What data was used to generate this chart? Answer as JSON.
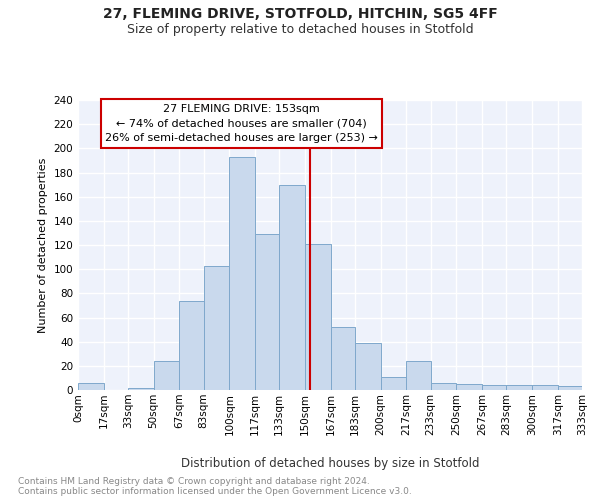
{
  "title": "27, FLEMING DRIVE, STOTFOLD, HITCHIN, SG5 4FF",
  "subtitle": "Size of property relative to detached houses in Stotfold",
  "xlabel": "Distribution of detached houses by size in Stotfold",
  "ylabel": "Number of detached properties",
  "bin_edges": [
    0,
    17,
    33,
    50,
    67,
    83,
    100,
    117,
    133,
    150,
    167,
    183,
    200,
    217,
    233,
    250,
    267,
    283,
    300,
    317,
    333
  ],
  "bin_labels": [
    "0sqm",
    "17sqm",
    "33sqm",
    "50sqm",
    "67sqm",
    "83sqm",
    "100sqm",
    "117sqm",
    "133sqm",
    "150sqm",
    "167sqm",
    "183sqm",
    "200sqm",
    "217sqm",
    "233sqm",
    "250sqm",
    "267sqm",
    "283sqm",
    "300sqm",
    "317sqm",
    "333sqm"
  ],
  "counts": [
    6,
    0,
    2,
    24,
    74,
    103,
    193,
    129,
    170,
    121,
    52,
    39,
    11,
    24,
    6,
    5,
    4,
    4,
    4,
    3
  ],
  "bar_color": "#c9d9ed",
  "bar_edge_color": "#7fa8cc",
  "property_size": 153,
  "vline_color": "#cc0000",
  "annotation_line1": "27 FLEMING DRIVE: 153sqm",
  "annotation_line2": "← 74% of detached houses are smaller (704)",
  "annotation_line3": "26% of semi-detached houses are larger (253) →",
  "annotation_box_edgecolor": "#cc0000",
  "annotation_box_facecolor": "#ffffff",
  "ylim": [
    0,
    240
  ],
  "yticks": [
    0,
    20,
    40,
    60,
    80,
    100,
    120,
    140,
    160,
    180,
    200,
    220,
    240
  ],
  "background_color": "#eef2fb",
  "grid_color": "#ffffff",
  "footer_line1": "Contains HM Land Registry data © Crown copyright and database right 2024.",
  "footer_line2": "Contains public sector information licensed under the Open Government Licence v3.0.",
  "title_fontsize": 10,
  "subtitle_fontsize": 9,
  "xlabel_fontsize": 8.5,
  "ylabel_fontsize": 8,
  "tick_fontsize": 7.5,
  "annotation_fontsize": 8,
  "footer_fontsize": 6.5
}
